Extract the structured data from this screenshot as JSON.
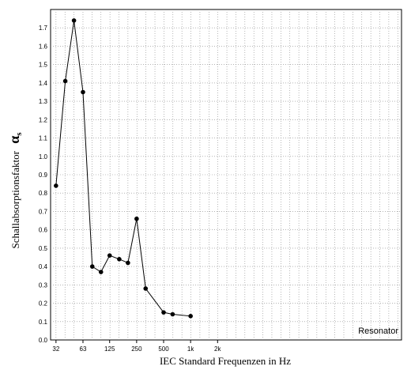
{
  "chart_data": {
    "type": "line",
    "xlabel": "IEC Standard Frequenzen in Hz",
    "ylabel": "Schallabsorptionsfaktor",
    "ylabel_symbol": "α",
    "ylabel_subscript": "s",
    "ylim": [
      0,
      1.8
    ],
    "yticks": [
      "0.0",
      "0.1",
      "0.2",
      "0.3",
      "0.4",
      "0.5",
      "0.6",
      "0.7",
      "0.8",
      "0.9",
      "1.0",
      "1.1",
      "1.2",
      "1.3",
      "1.4",
      "1.5",
      "1.6",
      "1.7"
    ],
    "xscale": "log (third-octave bands)",
    "xticks": [
      {
        "freq": 31.5,
        "label": "32"
      },
      {
        "freq": 63,
        "label": "63"
      },
      {
        "freq": 125,
        "label": "125"
      },
      {
        "freq": 250,
        "label": "250"
      },
      {
        "freq": 500,
        "label": "500"
      },
      {
        "freq": 1000,
        "label": "1k"
      },
      {
        "freq": 2000,
        "label": "2k"
      }
    ],
    "grid": true,
    "legend": {
      "placement": "bottom-right"
    },
    "series": [
      {
        "name": "Resonator",
        "color": "#000000",
        "x": [
          31.5,
          40,
          50,
          63,
          80,
          100,
          125,
          160,
          200,
          250,
          315,
          500,
          630,
          1000
        ],
        "values": [
          0.84,
          1.41,
          1.74,
          1.35,
          0.4,
          0.37,
          0.46,
          0.44,
          0.42,
          0.66,
          0.28,
          0.15,
          0.14,
          0.13
        ]
      }
    ]
  }
}
